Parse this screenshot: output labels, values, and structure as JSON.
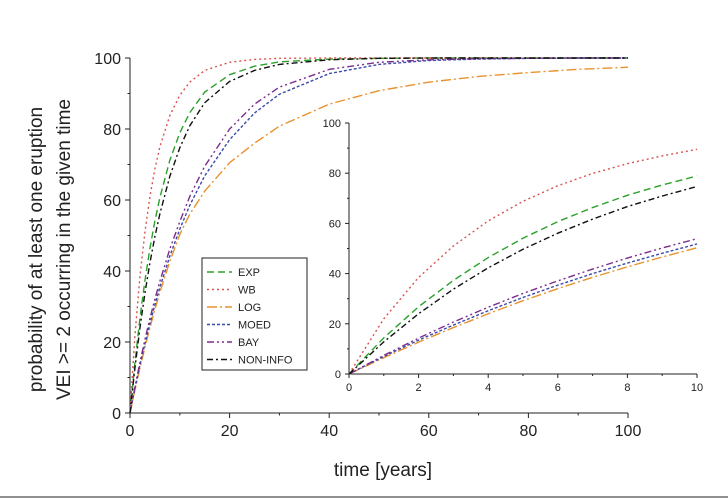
{
  "chart_data": [
    {
      "type": "line",
      "panel": "main",
      "title": "",
      "xlabel": "time [years]",
      "ylabel_lines": [
        "probability of at least one eruption",
        "VEI >= 2 occurring in the given time"
      ],
      "xlim": [
        0,
        100
      ],
      "ylim": [
        0,
        100
      ],
      "xticks": [
        0,
        20,
        40,
        60,
        80,
        100
      ],
      "yticks": [
        0,
        20,
        40,
        60,
        80,
        100
      ],
      "grid": false,
      "x": [
        0,
        1,
        2,
        3,
        4,
        5,
        6,
        8,
        10,
        12,
        15,
        20,
        25,
        30,
        40,
        50,
        60,
        70,
        80,
        90,
        100
      ],
      "series": [
        {
          "name": "EXP",
          "color": "#2ca02c",
          "dash": "7,4",
          "values": [
            0,
            14.4,
            26.8,
            37.3,
            46.4,
            54.1,
            60.7,
            71.2,
            78.9,
            84.6,
            90.4,
            95.3,
            97.7,
            98.9,
            99.7,
            99.9,
            100,
            100,
            100,
            100,
            100
          ]
        },
        {
          "name": "WB",
          "color": "#d9534f",
          "dash": "2,3",
          "values": [
            0,
            22.0,
            38.5,
            51.0,
            61.0,
            68.8,
            75.0,
            83.8,
            89.5,
            93.2,
            96.5,
            98.8,
            99.6,
            99.9,
            100,
            100,
            100,
            100,
            100,
            100,
            100
          ]
        },
        {
          "name": "LOG",
          "color": "#e8922e",
          "dash": "10,3,2,3",
          "values": [
            0,
            6.5,
            12.7,
            18.5,
            24.0,
            29.2,
            34.0,
            42.7,
            50.3,
            56.0,
            62.5,
            70.5,
            76.0,
            80.8,
            87.0,
            90.8,
            93.2,
            94.8,
            95.9,
            96.8,
            97.4
          ]
        },
        {
          "name": "MOED",
          "color": "#3b4ba8",
          "dash": "3,2",
          "values": [
            0,
            7.0,
            13.5,
            19.5,
            25.2,
            30.5,
            35.4,
            44.2,
            51.8,
            58.5,
            66.8,
            77.0,
            84.5,
            89.8,
            95.6,
            98.2,
            99.3,
            99.7,
            99.9,
            100,
            100
          ]
        },
        {
          "name": "BAY",
          "color": "#7b2d8e",
          "dash": "7,3,2,3,2,3",
          "values": [
            0,
            7.4,
            14.3,
            20.7,
            26.6,
            32.1,
            37.1,
            46.2,
            53.9,
            61.0,
            69.5,
            80.0,
            87.0,
            91.8,
            96.8,
            98.8,
            99.5,
            99.8,
            99.9,
            100,
            100
          ]
        },
        {
          "name": "NON-INFO",
          "color": "#111111",
          "dash": "6,3,2,3",
          "values": [
            0,
            12.8,
            24.0,
            33.8,
            42.3,
            49.7,
            56.1,
            66.7,
            74.7,
            80.9,
            87.4,
            93.4,
            96.5,
            98.2,
            99.5,
            99.9,
            100,
            100,
            100,
            100,
            100
          ]
        }
      ],
      "legend": {
        "placement": "lower-center",
        "entries": [
          "EXP",
          "WB",
          "LOG",
          "MOED",
          "BAY",
          "NON-INFO"
        ]
      }
    },
    {
      "type": "line",
      "panel": "inset",
      "title": "",
      "xlabel": "",
      "ylabel": "",
      "xlim": [
        0,
        10
      ],
      "ylim": [
        0,
        100
      ],
      "xticks": [
        0,
        2,
        4,
        6,
        8,
        10
      ],
      "yticks": [
        0,
        20,
        40,
        60,
        80,
        100
      ],
      "grid": false,
      "x": [
        0,
        1,
        2,
        3,
        4,
        5,
        6,
        7,
        8,
        9,
        10
      ],
      "series": [
        {
          "name": "EXP",
          "values": [
            0,
            14.4,
            26.8,
            37.3,
            46.4,
            54.1,
            60.7,
            66.3,
            71.2,
            75.3,
            78.9
          ]
        },
        {
          "name": "WB",
          "values": [
            0,
            22.0,
            38.5,
            51.0,
            61.0,
            68.8,
            75.0,
            79.9,
            83.8,
            86.9,
            89.5
          ]
        },
        {
          "name": "LOG",
          "values": [
            0,
            6.5,
            12.7,
            18.5,
            24.0,
            29.2,
            34.0,
            38.5,
            42.7,
            46.6,
            50.3
          ]
        },
        {
          "name": "MOED",
          "values": [
            0,
            7.0,
            13.5,
            19.5,
            25.2,
            30.5,
            35.4,
            40.0,
            44.2,
            48.1,
            51.8
          ]
        },
        {
          "name": "BAY",
          "values": [
            0,
            7.4,
            14.3,
            20.7,
            26.6,
            32.1,
            37.1,
            41.8,
            46.2,
            50.2,
            53.9
          ]
        },
        {
          "name": "NON-INFO",
          "values": [
            0,
            12.8,
            24.0,
            33.8,
            42.3,
            49.7,
            56.1,
            61.7,
            66.7,
            70.9,
            74.7
          ]
        }
      ]
    }
  ]
}
